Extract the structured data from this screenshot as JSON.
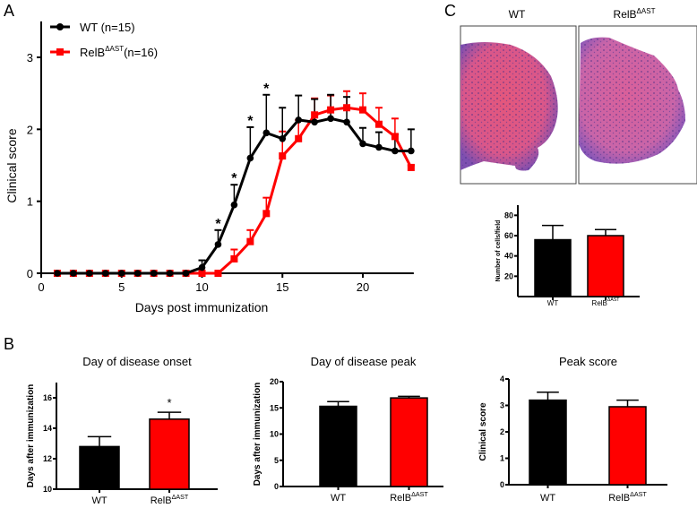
{
  "panel_labels": {
    "a": "A",
    "b": "B",
    "c": "C"
  },
  "colors": {
    "wt": "#000000",
    "relb": "#ff0000"
  },
  "groups": {
    "wt": "WT",
    "relb_base": "RelB",
    "relb_sup": "ΔAST"
  },
  "chart_data": [
    {
      "id": "clinical-course",
      "type": "line",
      "xlabel": "Days post immunization",
      "ylabel": "Clinical score",
      "xlim": [
        0,
        23
      ],
      "ylim": [
        0,
        3.5
      ],
      "xticks": [
        0,
        5,
        10,
        15,
        20
      ],
      "yticks": [
        0,
        1,
        2,
        3
      ],
      "legend": {
        "placement": "top-left",
        "wt": "WT (n=15)",
        "relb_base": "RelB",
        "relb_sup": "ΔAST",
        "relb_n": "(n=16)"
      },
      "x": [
        1,
        2,
        3,
        4,
        5,
        6,
        7,
        8,
        9,
        10,
        11,
        12,
        13,
        14,
        15,
        16,
        17,
        18,
        19,
        20,
        21,
        22,
        23
      ],
      "series": [
        {
          "name": "WT (n=15)",
          "color": "#000000",
          "marker": "circle",
          "values": [
            0,
            0,
            0,
            0,
            0,
            0,
            0,
            0,
            0,
            0.08,
            0.4,
            0.95,
            1.6,
            1.95,
            1.87,
            2.13,
            2.1,
            2.15,
            2.1,
            1.8,
            1.75,
            1.7,
            1.7
          ],
          "error_upper": [
            0,
            0,
            0,
            0,
            0,
            0,
            0,
            0,
            0,
            0.18,
            0.6,
            1.23,
            2.03,
            2.48,
            2.3,
            2.47,
            2.42,
            2.48,
            2.45,
            2.02,
            1.96,
            1.93,
            2.0
          ]
        },
        {
          "name": "RelB ΔAST (n=16)",
          "color": "#ff0000",
          "marker": "square",
          "values": [
            0,
            0,
            0,
            0,
            0,
            0,
            0,
            0,
            0,
            0,
            0,
            0.2,
            0.44,
            0.83,
            1.63,
            1.87,
            2.2,
            2.27,
            2.3,
            2.27,
            2.07,
            1.9,
            1.47
          ],
          "error_upper": [
            0,
            0,
            0,
            0,
            0,
            0,
            0,
            0,
            0,
            0,
            0,
            0.33,
            0.6,
            1.05,
            1.97,
            2.13,
            2.43,
            2.47,
            2.53,
            2.5,
            2.3,
            2.15,
            1.5
          ]
        }
      ],
      "annotations": [
        {
          "x": 11,
          "text": "*"
        },
        {
          "x": 12,
          "text": "*"
        },
        {
          "x": 13,
          "text": "*"
        },
        {
          "x": 14,
          "text": "*"
        }
      ]
    },
    {
      "id": "onset",
      "type": "bar",
      "title": "Day of disease onset",
      "ylabel": "Days after immunization",
      "ylim": [
        10,
        17
      ],
      "yticks": [
        10,
        12,
        14,
        16
      ],
      "values": [
        12.8,
        14.6
      ],
      "errors": [
        0.65,
        0.45
      ],
      "significance": [
        "",
        "*"
      ]
    },
    {
      "id": "peak-day",
      "type": "bar",
      "title": "Day of disease peak",
      "ylabel": "Days after immunization",
      "ylim": [
        0,
        20
      ],
      "yticks": [
        0,
        5,
        10,
        15,
        20
      ],
      "values": [
        15.3,
        16.9
      ],
      "errors": [
        0.9,
        0.3
      ],
      "significance": [
        "",
        ""
      ]
    },
    {
      "id": "peak-score",
      "type": "bar",
      "title": "Peak score",
      "ylabel": "Clinical score",
      "ylim": [
        0,
        4
      ],
      "yticks": [
        0,
        1,
        2,
        3,
        4
      ],
      "values": [
        3.2,
        2.95
      ],
      "errors": [
        0.3,
        0.25
      ],
      "significance": [
        "",
        ""
      ]
    },
    {
      "id": "cells",
      "type": "bar",
      "title": "",
      "ylabel": "Number of cells/field",
      "ylim": [
        0,
        90
      ],
      "yticks": [
        20,
        40,
        60,
        80
      ],
      "values": [
        56,
        60
      ],
      "errors": [
        14,
        6
      ],
      "significance": [
        "",
        ""
      ]
    }
  ],
  "histology": {
    "wt_title": "WT",
    "relb_base": "RelB",
    "relb_sup": "ΔAST"
  }
}
